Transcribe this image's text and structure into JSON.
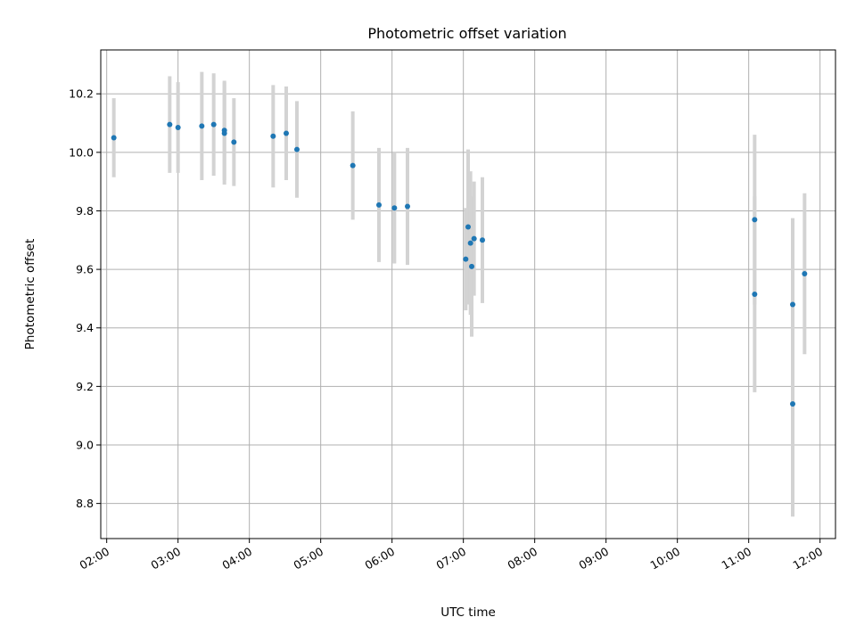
{
  "chart_data": {
    "type": "scatter",
    "title": "Photometric offset variation",
    "xlabel": "UTC time",
    "ylabel": "Photometric offset",
    "grid": true,
    "x_ticks": [
      "02:00",
      "03:00",
      "04:00",
      "05:00",
      "06:00",
      "07:00",
      "08:00",
      "09:00",
      "10:00",
      "11:00",
      "12:00"
    ],
    "y_ticks": [
      "8.8",
      "9.0",
      "9.2",
      "9.4",
      "9.6",
      "9.8",
      "10.0",
      "10.2"
    ],
    "xlim": [
      "01:55",
      "12:13"
    ],
    "ylim": [
      8.68,
      10.35
    ],
    "colors": {
      "point": "#1f77b4",
      "errorbar": "#d3d3d3"
    },
    "points": [
      {
        "x": "02:06",
        "y": 10.05,
        "err": 0.135
      },
      {
        "x": "02:53",
        "y": 10.095,
        "err": 0.165
      },
      {
        "x": "03:00",
        "y": 10.085,
        "err": 0.155
      },
      {
        "x": "03:20",
        "y": 10.09,
        "err": 0.185
      },
      {
        "x": "03:30",
        "y": 10.095,
        "err": 0.175
      },
      {
        "x": "03:39",
        "y": 10.075,
        "err": 0.17
      },
      {
        "x": "03:39",
        "y": 10.065,
        "err": 0.175
      },
      {
        "x": "03:47",
        "y": 10.035,
        "err": 0.15
      },
      {
        "x": "04:20",
        "y": 10.055,
        "err": 0.175
      },
      {
        "x": "04:31",
        "y": 10.065,
        "err": 0.16
      },
      {
        "x": "04:40",
        "y": 10.01,
        "err": 0.165
      },
      {
        "x": "05:27",
        "y": 9.955,
        "err": 0.185
      },
      {
        "x": "05:49",
        "y": 9.82,
        "err": 0.195
      },
      {
        "x": "06:02",
        "y": 9.81,
        "err": 0.19
      },
      {
        "x": "06:13",
        "y": 9.815,
        "err": 0.2
      },
      {
        "x": "07:02",
        "y": 9.635,
        "err": 0.175
      },
      {
        "x": "07:04",
        "y": 9.745,
        "err": 0.265
      },
      {
        "x": "07:06",
        "y": 9.69,
        "err": 0.245
      },
      {
        "x": "07:07",
        "y": 9.61,
        "err": 0.24
      },
      {
        "x": "07:09",
        "y": 9.705,
        "err": 0.195
      },
      {
        "x": "07:16",
        "y": 9.7,
        "err": 0.215
      },
      {
        "x": "11:05",
        "y": 9.515,
        "err": 0.335
      },
      {
        "x": "11:05",
        "y": 9.77,
        "err": 0.29
      },
      {
        "x": "11:37",
        "y": 9.48,
        "err": 0.295
      },
      {
        "x": "11:37",
        "y": 9.14,
        "err": 0.385
      },
      {
        "x": "11:47",
        "y": 9.585,
        "err": 0.275
      }
    ]
  }
}
